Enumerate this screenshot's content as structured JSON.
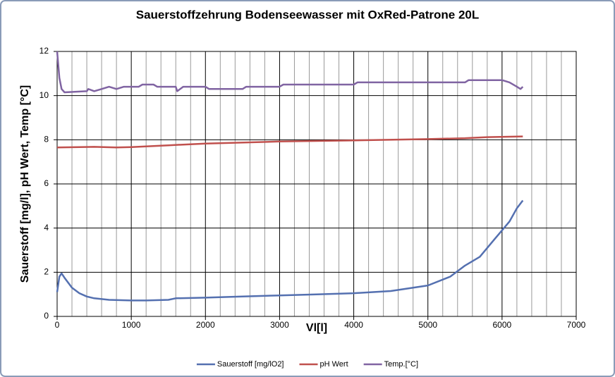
{
  "chart_data": {
    "type": "line",
    "title": "Sauerstoffzehrung Bodenseewasser mit OxRed-Patrone 20L",
    "x_label": "Vl[l]",
    "y_label": "Sauerstoff [mg/l], pH Wert, Temp [°C]",
    "xlim": [
      0,
      7000
    ],
    "xticks": [
      0,
      1000,
      2000,
      3000,
      4000,
      5000,
      6000,
      7000
    ],
    "ylim": [
      0,
      12
    ],
    "yticks": [
      0,
      2,
      4,
      6,
      8,
      10,
      12
    ],
    "grid": true,
    "legend": "bottom",
    "series": [
      {
        "name": "Sauerstoff [mg/lO2]",
        "color": "#5470b0",
        "x": [
          0,
          30,
          60,
          100,
          200,
          300,
          400,
          500,
          700,
          1000,
          1200,
          1500,
          1600,
          2000,
          2500,
          3000,
          3500,
          4000,
          4500,
          5000,
          5300,
          5500,
          5700,
          5900,
          6000,
          6100,
          6200,
          6280
        ],
        "values": [
          1.1,
          1.8,
          1.95,
          1.75,
          1.3,
          1.05,
          0.9,
          0.82,
          0.75,
          0.72,
          0.72,
          0.75,
          0.82,
          0.85,
          0.9,
          0.95,
          1.0,
          1.05,
          1.15,
          1.4,
          1.8,
          2.3,
          2.7,
          3.5,
          3.9,
          4.3,
          4.9,
          5.25
        ]
      },
      {
        "name": "pH Wert",
        "color": "#c0504d",
        "x": [
          0,
          500,
          800,
          1000,
          1500,
          2000,
          3000,
          4000,
          5000,
          5500,
          5800,
          6280
        ],
        "values": [
          7.65,
          7.68,
          7.65,
          7.67,
          7.75,
          7.83,
          7.92,
          7.97,
          8.03,
          8.07,
          8.12,
          8.15
        ]
      },
      {
        "name": "Temp.[°C]",
        "color": "#8064a2",
        "x": [
          0,
          30,
          60,
          100,
          400,
          420,
          500,
          600,
          700,
          800,
          900,
          1100,
          1150,
          1300,
          1350,
          1600,
          1620,
          1700,
          2000,
          2050,
          2500,
          2550,
          3000,
          3050,
          4000,
          4050,
          5500,
          5550,
          6000,
          6100,
          6200,
          6250,
          6280
        ],
        "values": [
          12,
          10.8,
          10.3,
          10.15,
          10.2,
          10.3,
          10.2,
          10.3,
          10.4,
          10.3,
          10.4,
          10.4,
          10.5,
          10.5,
          10.4,
          10.4,
          10.2,
          10.4,
          10.4,
          10.3,
          10.3,
          10.4,
          10.4,
          10.5,
          10.5,
          10.6,
          10.6,
          10.7,
          10.7,
          10.6,
          10.4,
          10.3,
          10.4
        ]
      }
    ]
  }
}
